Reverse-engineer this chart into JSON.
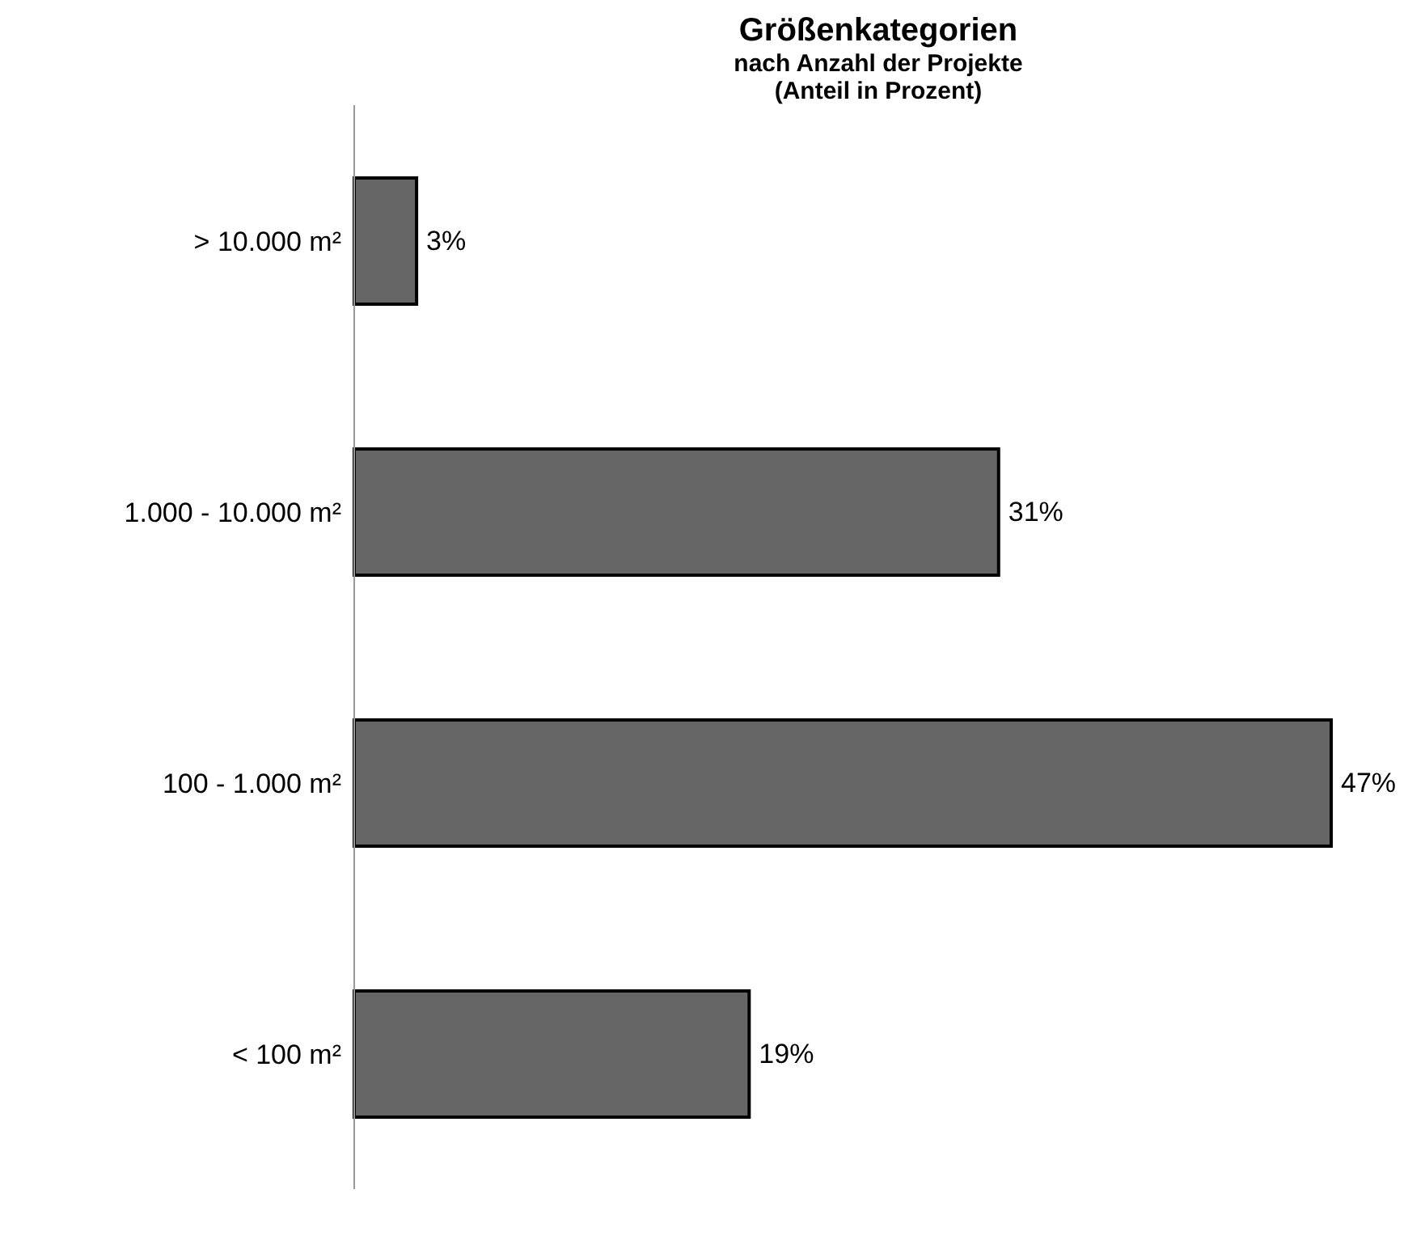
{
  "chart_data": {
    "type": "bar",
    "orientation": "horizontal",
    "title": "Größenkategorien",
    "subtitle": "nach Anzahl der Projekte\n(Anteil in Prozent)",
    "categories": [
      "> 10.000 m²",
      "1.000 - 10.000 m²",
      "100 - 1.000 m²",
      "< 100 m²"
    ],
    "values": [
      3,
      31,
      47,
      19
    ],
    "value_labels": [
      "3%",
      "31%",
      "47%",
      "19%"
    ],
    "color": "#666666"
  }
}
